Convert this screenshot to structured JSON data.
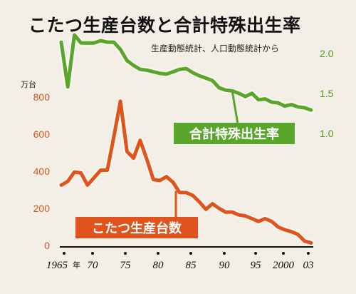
{
  "chart_data": {
    "type": "line",
    "title": "こたつ生産台数と合計特殊出生率",
    "source": "生産動態統計、人口動態統計から",
    "left_axis": {
      "unit": "万台",
      "ticks": [
        "0",
        "200",
        "400",
        "600",
        "800"
      ],
      "range": [
        0,
        800
      ],
      "color": "#d9541d"
    },
    "right_axis": {
      "ticks": [
        "1.0",
        "1.5",
        "2.0"
      ],
      "range": [
        0.9,
        2.15
      ],
      "color": "#4f9a24"
    },
    "x_axis": {
      "ticks": [
        "1965",
        "70",
        "75",
        "80",
        "85",
        "90",
        "95",
        "2000",
        "03"
      ],
      "tick_years": [
        1965,
        1970,
        1975,
        1980,
        1985,
        1990,
        1995,
        2000,
        2003
      ],
      "first_suffix": "年",
      "range": [
        1965,
        2003
      ]
    },
    "series": [
      {
        "name": "合計特殊出生率",
        "axis": "right",
        "color": "#5aa52b",
        "x": [
          1965,
          1966,
          1967,
          1968,
          1969,
          1970,
          1971,
          1972,
          1973,
          1974,
          1975,
          1976,
          1977,
          1978,
          1979,
          1980,
          1981,
          1982,
          1983,
          1984,
          1985,
          1986,
          1987,
          1988,
          1989,
          1990,
          1991,
          1992,
          1993,
          1994,
          1995,
          1996,
          1997,
          1998,
          1999,
          2000,
          2001,
          2002,
          2003
        ],
        "values": [
          2.14,
          1.58,
          2.23,
          2.13,
          2.13,
          2.13,
          2.16,
          2.14,
          2.14,
          2.05,
          1.91,
          1.85,
          1.8,
          1.79,
          1.77,
          1.75,
          1.74,
          1.77,
          1.8,
          1.81,
          1.76,
          1.72,
          1.69,
          1.66,
          1.57,
          1.54,
          1.53,
          1.5,
          1.46,
          1.5,
          1.42,
          1.43,
          1.39,
          1.38,
          1.34,
          1.36,
          1.33,
          1.32,
          1.29
        ]
      },
      {
        "name": "こたつ生産台数",
        "axis": "left",
        "color": "#e0531c",
        "x": [
          1965,
          1966,
          1967,
          1968,
          1969,
          1970,
          1971,
          1972,
          1973,
          1974,
          1975,
          1976,
          1977,
          1978,
          1979,
          1980,
          1981,
          1982,
          1983,
          1984,
          1985,
          1986,
          1987,
          1988,
          1989,
          1990,
          1991,
          1992,
          1993,
          1994,
          1995,
          1996,
          1997,
          1998,
          1999,
          2000,
          2001,
          2002,
          2003
        ],
        "values": [
          320,
          340,
          390,
          385,
          320,
          360,
          400,
          400,
          580,
          770,
          500,
          465,
          560,
          460,
          350,
          345,
          365,
          335,
          280,
          280,
          265,
          230,
          190,
          220,
          195,
          175,
          175,
          160,
          155,
          140,
          125,
          140,
          125,
          95,
          80,
          70,
          55,
          20,
          10
        ]
      }
    ]
  }
}
